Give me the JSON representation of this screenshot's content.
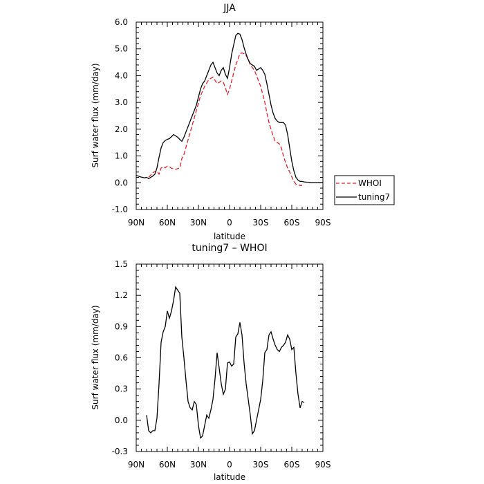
{
  "chart_data": [
    {
      "type": "line",
      "title": "JJA",
      "xlabel": "latitude",
      "ylabel": "Surf water flux (mm/day)",
      "xlim": [
        90,
        -90
      ],
      "ylim": [
        -1.0,
        6.0
      ],
      "x_ticks": [
        90,
        60,
        30,
        0,
        -30,
        -60,
        -90
      ],
      "x_tick_labels": [
        "90N",
        "60N",
        "30N",
        "0",
        "30S",
        "60S",
        "90S"
      ],
      "y_ticks": [
        -1.0,
        0.0,
        1.0,
        2.0,
        3.0,
        4.0,
        5.0,
        6.0
      ],
      "y_tick_labels": [
        "-1.0",
        "0.0",
        "1.0",
        "2.0",
        "3.0",
        "4.0",
        "5.0",
        "6.0"
      ],
      "legend_position": "outside-right",
      "series": [
        {
          "name": "WHOI",
          "color": "#e8202a",
          "dash": "dashed",
          "x": [
            78,
            74,
            70,
            68,
            66,
            64,
            62,
            60,
            58,
            56,
            52,
            48,
            46,
            44,
            40,
            36,
            32,
            28,
            24,
            20,
            16,
            12,
            8,
            6,
            4,
            2,
            0,
            -2,
            -4,
            -6,
            -8,
            -10,
            -12,
            -14,
            -16,
            -18,
            -20,
            -22,
            -24,
            -26,
            -28,
            -30,
            -32,
            -34,
            -36,
            -38,
            -40,
            -42,
            -44,
            -46,
            -48,
            -50,
            -52,
            -54,
            -56,
            -58,
            -60,
            -62,
            -64,
            -66,
            -68,
            -70
          ],
          "y": [
            0.2,
            0.38,
            0.45,
            0.32,
            0.55,
            0.6,
            0.56,
            0.62,
            0.6,
            0.54,
            0.5,
            0.55,
            0.9,
            1.05,
            1.6,
            2.15,
            2.7,
            3.25,
            3.6,
            3.85,
            3.95,
            3.7,
            3.8,
            3.75,
            3.55,
            3.3,
            3.5,
            3.8,
            4.1,
            4.4,
            4.6,
            4.82,
            4.85,
            4.82,
            4.75,
            4.6,
            4.4,
            4.3,
            4.2,
            4.0,
            3.8,
            3.6,
            3.3,
            3.0,
            2.6,
            2.25,
            2.0,
            1.75,
            1.55,
            1.5,
            1.45,
            1.3,
            1.0,
            0.75,
            0.55,
            0.4,
            0.22,
            0.05,
            -0.05,
            -0.08,
            -0.1,
            -0.1
          ]
        },
        {
          "name": "tuning7",
          "color": "#000000",
          "dash": "solid",
          "x": [
            90,
            88,
            86,
            84,
            82,
            80,
            78,
            76,
            74,
            72,
            70,
            68,
            66,
            64,
            62,
            60,
            58,
            56,
            54,
            52,
            50,
            48,
            46,
            44,
            42,
            40,
            38,
            36,
            34,
            32,
            30,
            28,
            26,
            24,
            22,
            20,
            18,
            16,
            14,
            12,
            10,
            8,
            6,
            4,
            2,
            0,
            -2,
            -4,
            -6,
            -8,
            -10,
            -12,
            -14,
            -16,
            -18,
            -20,
            -22,
            -24,
            -26,
            -28,
            -30,
            -32,
            -34,
            -36,
            -38,
            -40,
            -42,
            -44,
            -46,
            -48,
            -50,
            -52,
            -54,
            -56,
            -58,
            -60,
            -62,
            -64,
            -66,
            -68,
            -70,
            -72,
            -74,
            -76,
            -78,
            -80,
            -82,
            -84,
            -86,
            -88,
            -90
          ],
          "y": [
            0.27,
            0.25,
            0.22,
            0.2,
            0.18,
            0.2,
            0.15,
            0.2,
            0.25,
            0.32,
            0.55,
            0.95,
            1.3,
            1.5,
            1.58,
            1.62,
            1.65,
            1.72,
            1.8,
            1.75,
            1.7,
            1.62,
            1.55,
            1.7,
            1.9,
            2.1,
            2.3,
            2.5,
            2.7,
            2.9,
            3.2,
            3.5,
            3.7,
            3.8,
            4.0,
            4.2,
            4.4,
            4.5,
            4.3,
            4.1,
            4.0,
            4.2,
            4.3,
            4.05,
            3.9,
            4.3,
            4.8,
            5.15,
            5.5,
            5.58,
            5.55,
            5.35,
            5.05,
            4.8,
            4.6,
            4.45,
            4.4,
            4.35,
            4.2,
            4.25,
            4.3,
            4.2,
            4.05,
            3.7,
            3.3,
            2.9,
            2.6,
            2.4,
            2.3,
            2.25,
            2.25,
            2.25,
            2.15,
            1.8,
            1.3,
            0.8,
            0.45,
            0.2,
            0.1,
            0.05,
            0.05,
            0.03,
            0.02,
            0.02,
            0.0,
            0.0,
            0.0,
            0.0,
            0.0,
            0.0,
            0.0
          ]
        }
      ]
    },
    {
      "type": "line",
      "title": "tuning7 – WHOI",
      "xlabel": "latitude",
      "ylabel": "Surf water flux (mm/day)",
      "xlim": [
        90,
        -90
      ],
      "ylim": [
        -0.3,
        1.5
      ],
      "x_ticks": [
        90,
        60,
        30,
        0,
        -30,
        -60,
        -90
      ],
      "x_tick_labels": [
        "90N",
        "60N",
        "30N",
        "0",
        "30S",
        "60S",
        "90S"
      ],
      "y_ticks": [
        -0.3,
        0.0,
        0.3,
        0.6,
        0.9,
        1.2,
        1.5
      ],
      "y_tick_labels": [
        "-0.3",
        "0.0",
        "0.3",
        "0.6",
        "0.9",
        "1.2",
        "1.5"
      ],
      "series": [
        {
          "color": "#000000",
          "dash": "solid",
          "x": [
            80,
            78,
            76,
            74,
            72,
            70,
            68,
            66,
            64,
            62,
            60,
            58,
            56,
            54,
            52,
            50,
            48,
            46,
            44,
            42,
            40,
            38,
            36,
            34,
            32,
            30,
            28,
            26,
            24,
            22,
            20,
            18,
            16,
            14,
            12,
            10,
            8,
            6,
            4,
            2,
            0,
            -2,
            -4,
            -6,
            -8,
            -10,
            -12,
            -14,
            -16,
            -18,
            -20,
            -22,
            -24,
            -26,
            -28,
            -30,
            -32,
            -34,
            -36,
            -38,
            -40,
            -42,
            -44,
            -46,
            -48,
            -50,
            -52,
            -54,
            -56,
            -58,
            -60,
            -62,
            -64,
            -66,
            -68,
            -70,
            -72
          ],
          "y": [
            0.05,
            -0.1,
            -0.12,
            -0.1,
            -0.1,
            0.02,
            0.35,
            0.75,
            0.85,
            0.9,
            1.05,
            0.98,
            1.05,
            1.15,
            1.28,
            1.25,
            1.22,
            0.8,
            0.6,
            0.38,
            0.18,
            0.12,
            0.1,
            0.18,
            0.15,
            -0.05,
            -0.17,
            -0.15,
            -0.05,
            0.05,
            0.02,
            0.1,
            0.2,
            0.4,
            0.65,
            0.5,
            0.35,
            0.25,
            0.3,
            0.55,
            0.56,
            0.52,
            0.54,
            0.8,
            0.83,
            0.94,
            0.82,
            0.55,
            0.35,
            0.2,
            0.05,
            -0.13,
            -0.1,
            0.0,
            0.1,
            0.2,
            0.38,
            0.65,
            0.68,
            0.82,
            0.85,
            0.78,
            0.72,
            0.68,
            0.66,
            0.7,
            0.72,
            0.75,
            0.82,
            0.78,
            0.68,
            0.7,
            0.45,
            0.25,
            0.12,
            0.18,
            0.17
          ]
        }
      ]
    }
  ]
}
